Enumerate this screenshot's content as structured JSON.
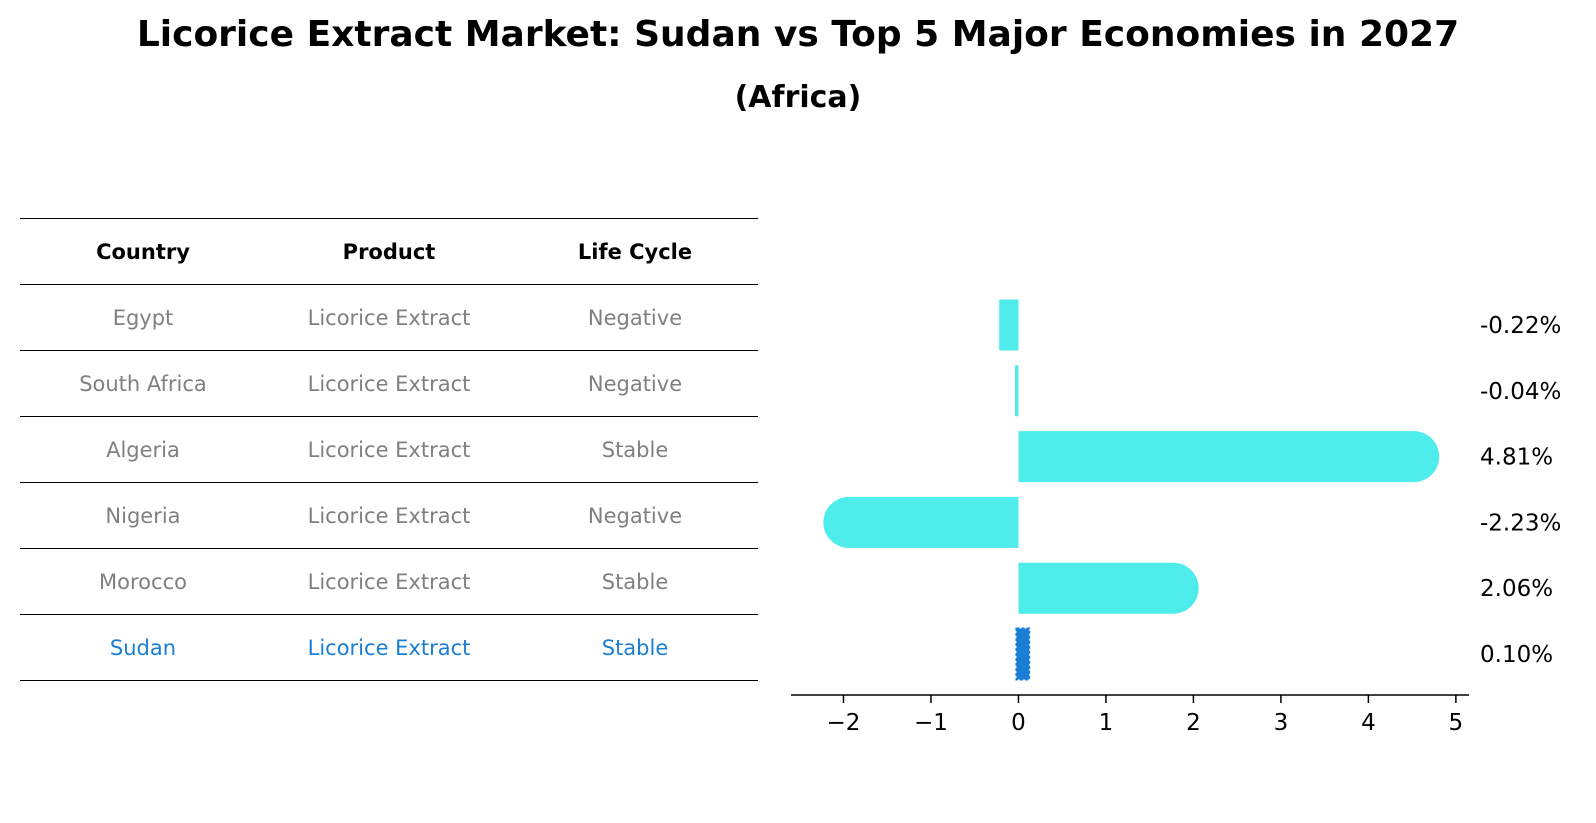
{
  "chart_data": {
    "type": "bar",
    "title": "Licorice Extract Market: Sudan vs Top 5 Major Economies in 2027",
    "subtitle": "(Africa)",
    "table": {
      "columns": [
        "Country",
        "Product",
        "Life Cycle"
      ],
      "rows": [
        {
          "country": "Egypt",
          "product": "Licorice Extract",
          "life_cycle": "Negative"
        },
        {
          "country": "South Africa",
          "product": "Licorice Extract",
          "life_cycle": "Negative"
        },
        {
          "country": "Algeria",
          "product": "Licorice Extract",
          "life_cycle": "Stable"
        },
        {
          "country": "Nigeria",
          "product": "Licorice Extract",
          "life_cycle": "Negative"
        },
        {
          "country": "Morocco",
          "product": "Licorice Extract",
          "life_cycle": "Stable"
        },
        {
          "country": "Sudan",
          "product": "Licorice Extract",
          "life_cycle": "Stable"
        }
      ]
    },
    "categories": [
      "Egypt",
      "South Africa",
      "Algeria",
      "Nigeria",
      "Morocco",
      "Sudan"
    ],
    "values": [
      -0.22,
      -0.04,
      4.81,
      -2.23,
      2.06,
      0.1
    ],
    "labels": [
      "-0.22%",
      "-0.04%",
      "4.81%",
      "-2.23%",
      "2.06%",
      "0.10%"
    ],
    "xlim": [
      -2.6,
      5.15
    ],
    "xticks": [
      -2,
      -1,
      0,
      1,
      2,
      3,
      4,
      5
    ],
    "xtick_labels": [
      "−2",
      "−1",
      "0",
      "1",
      "2",
      "3",
      "4",
      "5"
    ],
    "highlight": "Sudan",
    "colors": {
      "bar": "#4eeceb",
      "highlight": "#1a7fd4",
      "text_muted": "#808080"
    }
  }
}
